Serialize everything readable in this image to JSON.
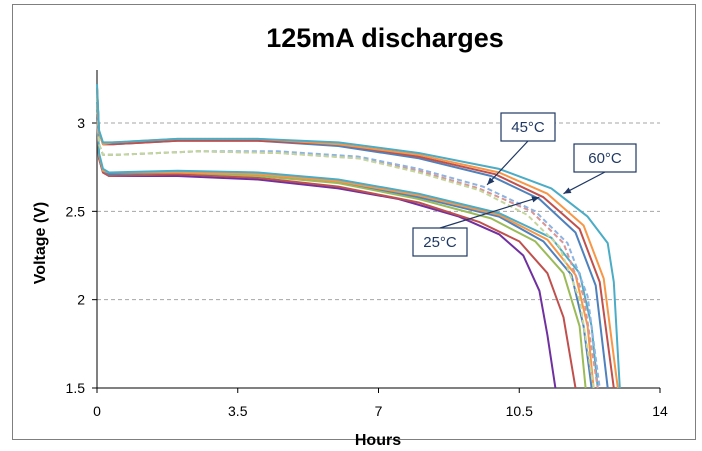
{
  "chart_data": {
    "type": "line",
    "title": "125mA discharges",
    "xlabel": "Hours",
    "ylabel": "Voltage (V)",
    "xlim": [
      0,
      14
    ],
    "ylim": [
      1.5,
      3.3
    ],
    "x_ticks": [
      "0",
      "3.5",
      "7",
      "10.5",
      "14"
    ],
    "y_ticks": [
      "1.5",
      "2",
      "2.5",
      "3"
    ],
    "grid": "horizontal-dashed",
    "annotations": [
      {
        "text": "25°C",
        "points_to": [
          11.0,
          2.58
        ]
      },
      {
        "text": "45°C",
        "points_to": [
          9.7,
          2.65
        ]
      },
      {
        "text": "60°C",
        "points_to": [
          11.6,
          2.6
        ]
      }
    ],
    "series": [
      {
        "color": "#7030a0",
        "dash": false,
        "points": [
          [
            0,
            3.05
          ],
          [
            0.05,
            2.8
          ],
          [
            0.15,
            2.72
          ],
          [
            0.3,
            2.7
          ],
          [
            2,
            2.7
          ],
          [
            4,
            2.68
          ],
          [
            6,
            2.63
          ],
          [
            7.5,
            2.57
          ],
          [
            9,
            2.47
          ],
          [
            10,
            2.37
          ],
          [
            10.6,
            2.25
          ],
          [
            11.0,
            2.05
          ],
          [
            11.2,
            1.8
          ],
          [
            11.4,
            1.5
          ]
        ]
      },
      {
        "color": "#c0504d",
        "dash": false,
        "points": [
          [
            0,
            3.05
          ],
          [
            0.05,
            2.8
          ],
          [
            0.15,
            2.72
          ],
          [
            0.3,
            2.7
          ],
          [
            2,
            2.71
          ],
          [
            4,
            2.69
          ],
          [
            6,
            2.64
          ],
          [
            8,
            2.55
          ],
          [
            9.5,
            2.44
          ],
          [
            10.5,
            2.33
          ],
          [
            11.2,
            2.15
          ],
          [
            11.6,
            1.9
          ],
          [
            11.9,
            1.5
          ]
        ]
      },
      {
        "color": "#9bbb59",
        "dash": false,
        "points": [
          [
            0,
            3.1
          ],
          [
            0.05,
            2.82
          ],
          [
            0.15,
            2.73
          ],
          [
            0.3,
            2.71
          ],
          [
            2,
            2.72
          ],
          [
            4,
            2.7
          ],
          [
            6,
            2.66
          ],
          [
            8,
            2.57
          ],
          [
            9.8,
            2.46
          ],
          [
            10.9,
            2.33
          ],
          [
            11.6,
            2.15
          ],
          [
            12.0,
            1.85
          ],
          [
            12.15,
            1.5
          ]
        ]
      },
      {
        "color": "#4f81bd",
        "dash": false,
        "points": [
          [
            0,
            3.1
          ],
          [
            0.05,
            2.82
          ],
          [
            0.15,
            2.73
          ],
          [
            0.3,
            2.71
          ],
          [
            2,
            2.72
          ],
          [
            4,
            2.71
          ],
          [
            6,
            2.67
          ],
          [
            8,
            2.58
          ],
          [
            10,
            2.47
          ],
          [
            11.1,
            2.33
          ],
          [
            11.8,
            2.14
          ],
          [
            12.1,
            1.85
          ],
          [
            12.3,
            1.5
          ]
        ]
      },
      {
        "color": "#f79646",
        "dash": false,
        "points": [
          [
            0,
            3.1
          ],
          [
            0.05,
            2.82
          ],
          [
            0.15,
            2.73
          ],
          [
            0.3,
            2.72
          ],
          [
            2,
            2.72
          ],
          [
            4,
            2.71
          ],
          [
            6,
            2.67
          ],
          [
            8,
            2.59
          ],
          [
            10,
            2.48
          ],
          [
            11.2,
            2.34
          ],
          [
            11.9,
            2.14
          ],
          [
            12.2,
            1.85
          ],
          [
            12.35,
            1.5
          ]
        ]
      },
      {
        "color": "#4bacc6",
        "dash": false,
        "points": [
          [
            0,
            3.12
          ],
          [
            0.05,
            2.83
          ],
          [
            0.15,
            2.74
          ],
          [
            0.3,
            2.72
          ],
          [
            2,
            2.73
          ],
          [
            4,
            2.72
          ],
          [
            6,
            2.68
          ],
          [
            8,
            2.6
          ],
          [
            10,
            2.49
          ],
          [
            11.3,
            2.35
          ],
          [
            12.0,
            2.15
          ],
          [
            12.3,
            1.85
          ],
          [
            12.45,
            1.5
          ]
        ]
      },
      {
        "color": "#d99694",
        "dash": true,
        "points": [
          [
            0,
            3.15
          ],
          [
            0.05,
            2.88
          ],
          [
            0.15,
            2.82
          ],
          [
            0.5,
            2.82
          ],
          [
            2.5,
            2.84
          ],
          [
            4.5,
            2.83
          ],
          [
            6.5,
            2.8
          ],
          [
            8,
            2.73
          ],
          [
            9.5,
            2.63
          ],
          [
            10.8,
            2.5
          ],
          [
            11.6,
            2.32
          ],
          [
            12.1,
            2.02
          ],
          [
            12.45,
            1.5
          ]
        ]
      },
      {
        "color": "#8db3e2",
        "dash": true,
        "points": [
          [
            0,
            3.15
          ],
          [
            0.05,
            2.88
          ],
          [
            0.15,
            2.82
          ],
          [
            0.5,
            2.82
          ],
          [
            2.5,
            2.84
          ],
          [
            4.5,
            2.84
          ],
          [
            6.5,
            2.81
          ],
          [
            8,
            2.74
          ],
          [
            9.6,
            2.64
          ],
          [
            10.9,
            2.5
          ],
          [
            11.7,
            2.32
          ],
          [
            12.2,
            2.02
          ],
          [
            12.5,
            1.5
          ]
        ]
      },
      {
        "color": "#c3d69b",
        "dash": true,
        "points": [
          [
            0,
            3.15
          ],
          [
            0.05,
            2.88
          ],
          [
            0.15,
            2.82
          ],
          [
            0.5,
            2.82
          ],
          [
            2.5,
            2.84
          ],
          [
            4.5,
            2.83
          ],
          [
            6.5,
            2.8
          ],
          [
            8,
            2.72
          ],
          [
            9.5,
            2.62
          ],
          [
            10.7,
            2.48
          ],
          [
            11.5,
            2.3
          ],
          [
            12.0,
            2.0
          ],
          [
            12.35,
            1.5
          ]
        ]
      },
      {
        "color": "#4f81bd",
        "dash": false,
        "points": [
          [
            0,
            3.2
          ],
          [
            0.05,
            2.95
          ],
          [
            0.15,
            2.88
          ],
          [
            0.4,
            2.88
          ],
          [
            2,
            2.9
          ],
          [
            4,
            2.9
          ],
          [
            6,
            2.87
          ],
          [
            8,
            2.8
          ],
          [
            9.8,
            2.7
          ],
          [
            11,
            2.57
          ],
          [
            11.9,
            2.38
          ],
          [
            12.4,
            2.08
          ],
          [
            12.7,
            1.5
          ]
        ]
      },
      {
        "color": "#c0504d",
        "dash": false,
        "points": [
          [
            0,
            3.2
          ],
          [
            0.05,
            2.95
          ],
          [
            0.15,
            2.88
          ],
          [
            0.4,
            2.88
          ],
          [
            2,
            2.9
          ],
          [
            4,
            2.9
          ],
          [
            6,
            2.88
          ],
          [
            8,
            2.81
          ],
          [
            9.9,
            2.71
          ],
          [
            11.1,
            2.58
          ],
          [
            12.0,
            2.4
          ],
          [
            12.5,
            2.1
          ],
          [
            12.85,
            1.5
          ]
        ]
      },
      {
        "color": "#f79646",
        "dash": false,
        "points": [
          [
            0,
            3.2
          ],
          [
            0.05,
            2.95
          ],
          [
            0.15,
            2.88
          ],
          [
            0.4,
            2.89
          ],
          [
            2,
            2.91
          ],
          [
            4,
            2.91
          ],
          [
            6,
            2.88
          ],
          [
            8,
            2.82
          ],
          [
            10,
            2.72
          ],
          [
            11.2,
            2.6
          ],
          [
            12.1,
            2.42
          ],
          [
            12.6,
            2.12
          ],
          [
            12.95,
            1.5
          ]
        ]
      },
      {
        "color": "#4bacc6",
        "dash": false,
        "points": [
          [
            0,
            3.22
          ],
          [
            0.05,
            2.96
          ],
          [
            0.15,
            2.89
          ],
          [
            0.4,
            2.89
          ],
          [
            2,
            2.91
          ],
          [
            4,
            2.91
          ],
          [
            6,
            2.89
          ],
          [
            8,
            2.83
          ],
          [
            10,
            2.74
          ],
          [
            11.3,
            2.63
          ],
          [
            12.2,
            2.47
          ],
          [
            12.7,
            2.32
          ],
          [
            12.85,
            2.1
          ],
          [
            13.0,
            1.5
          ]
        ]
      }
    ]
  }
}
